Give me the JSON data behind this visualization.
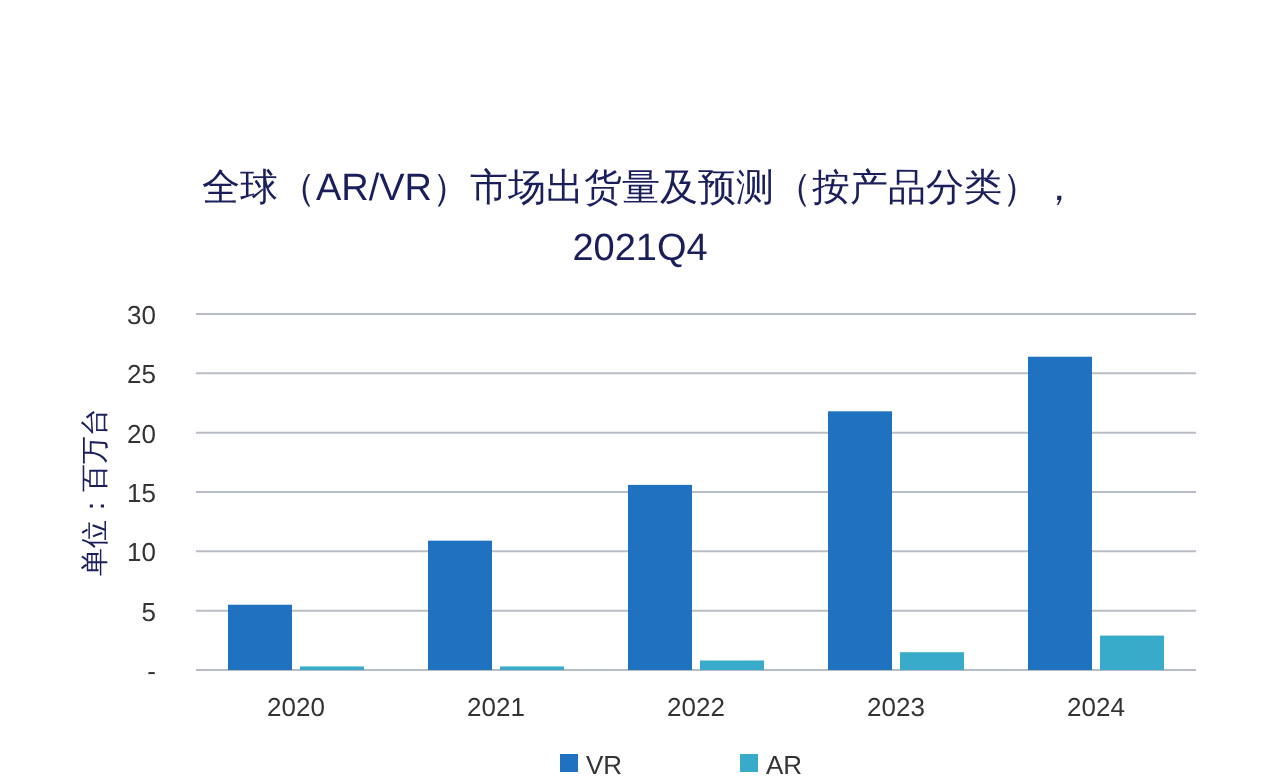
{
  "chart_data": {
    "type": "bar",
    "title": "全球（AR/VR）市场出货量及预测（按产品分类），\n2021Q4",
    "ylabel": "单位：百万台",
    "categories": [
      "2020",
      "2021",
      "2022",
      "2023",
      "2024"
    ],
    "series": [
      {
        "name": "VR",
        "color": "#1f72bf",
        "values": [
          5.5,
          10.9,
          15.6,
          21.8,
          26.4
        ]
      },
      {
        "name": "AR",
        "color": "#38abcb",
        "values": [
          0.3,
          0.3,
          0.8,
          1.5,
          2.9
        ]
      }
    ],
    "ylim": [
      0,
      30
    ],
    "yticks": [
      {
        "value": 0,
        "label": "-"
      },
      5,
      10,
      15,
      20,
      25,
      30
    ],
    "grid": "y",
    "legend": "bottom"
  }
}
